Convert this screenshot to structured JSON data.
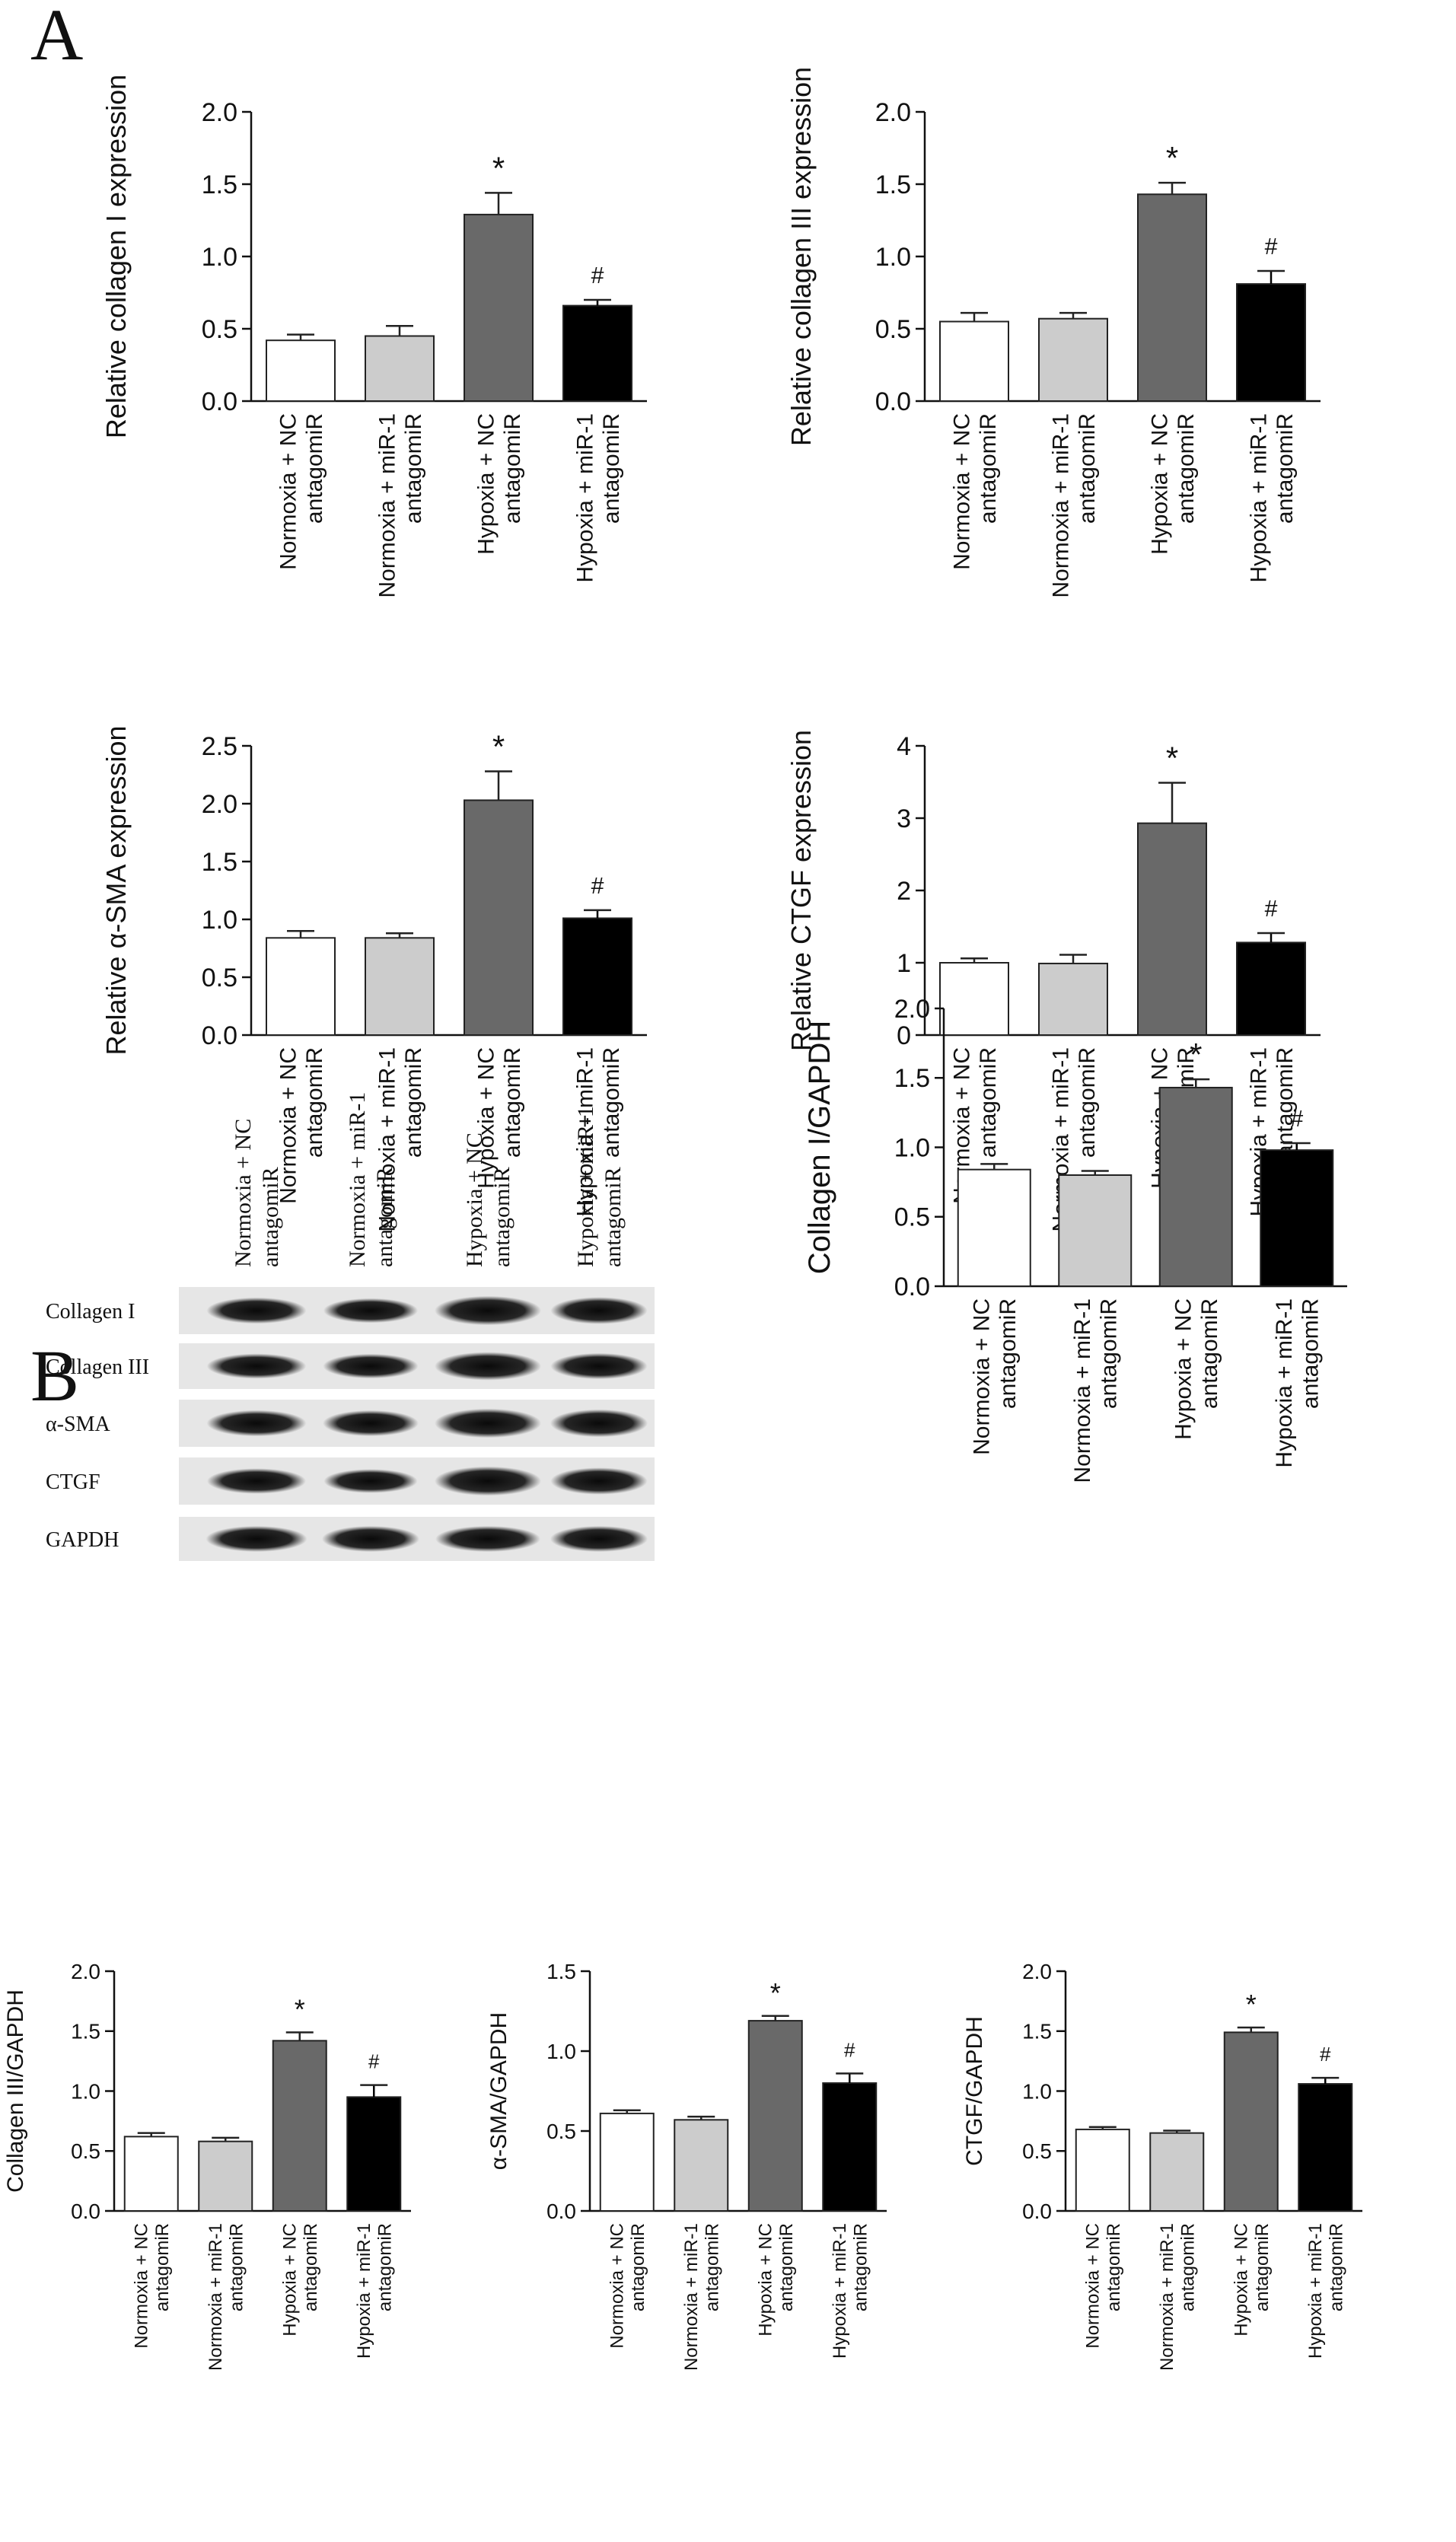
{
  "panel_labels": [
    "A",
    "B"
  ],
  "categories": [
    [
      "Normoxia + NC",
      "antagomiR"
    ],
    [
      "Normoxia + miR-1",
      "antagomiR"
    ],
    [
      "Hypoxia + NC",
      "antagomiR"
    ],
    [
      "Hypoxia + miR-1",
      "antagomiR"
    ]
  ],
  "colors": {
    "bars": [
      "#ffffff",
      "#cccccc",
      "#696969",
      "#000000"
    ],
    "axis": "#111111"
  },
  "blot": {
    "rows": [
      "Collagen I",
      "Collagen III",
      "α-SMA",
      "CTGF",
      "GAPDH"
    ],
    "columns": [
      [
        "Normoxia + NC",
        "antagomiR"
      ],
      [
        "Normoxia + miR-1",
        "antagomiR"
      ],
      [
        "Hypoxia + NC",
        "antagomiR"
      ],
      [
        "Hypoxia + miR-1",
        "antagomiR"
      ]
    ]
  },
  "chart_data": [
    {
      "id": "collagen1-expr",
      "type": "bar",
      "ylabel": "Relative collagen I expression",
      "ylim": [
        0,
        2.0
      ],
      "ticks": [
        0.0,
        0.5,
        1.0,
        1.5,
        2.0
      ],
      "tick_labels": [
        "0.0",
        "0.5",
        "1.0",
        "1.5",
        "2.0"
      ],
      "values": [
        0.42,
        0.45,
        1.29,
        0.66
      ],
      "errors": [
        0.04,
        0.07,
        0.15,
        0.04
      ],
      "marks": [
        "",
        "",
        "*",
        "#"
      ]
    },
    {
      "id": "collagen3-expr",
      "type": "bar",
      "ylabel": "Relative collagen III expression",
      "ylim": [
        0,
        2.0
      ],
      "ticks": [
        0.0,
        0.5,
        1.0,
        1.5,
        2.0
      ],
      "tick_labels": [
        "0.0",
        "0.5",
        "1.0",
        "1.5",
        "2.0"
      ],
      "values": [
        0.55,
        0.57,
        1.43,
        0.81
      ],
      "errors": [
        0.06,
        0.04,
        0.08,
        0.09
      ],
      "marks": [
        "",
        "",
        "*",
        "#"
      ]
    },
    {
      "id": "asma-expr",
      "type": "bar",
      "ylabel": "Relative α-SMA expression",
      "ylim": [
        0,
        2.5
      ],
      "ticks": [
        0.0,
        0.5,
        1.0,
        1.5,
        2.0,
        2.5
      ],
      "tick_labels": [
        "0.0",
        "0.5",
        "1.0",
        "1.5",
        "2.0",
        "2.5"
      ],
      "values": [
        0.84,
        0.84,
        2.03,
        1.01
      ],
      "errors": [
        0.06,
        0.04,
        0.25,
        0.07
      ],
      "marks": [
        "",
        "",
        "*",
        "#"
      ]
    },
    {
      "id": "ctgf-expr",
      "type": "bar",
      "ylabel": "Relative CTGF expression",
      "ylim": [
        0,
        4
      ],
      "ticks": [
        0,
        1,
        2,
        3,
        4
      ],
      "tick_labels": [
        "0",
        "1",
        "2",
        "3",
        "4"
      ],
      "values": [
        1.0,
        0.99,
        2.93,
        1.28
      ],
      "errors": [
        0.06,
        0.12,
        0.56,
        0.13
      ],
      "marks": [
        "",
        "",
        "*",
        "#"
      ]
    },
    {
      "id": "collagen1-gapdh",
      "type": "bar",
      "ylabel": "Collagen I/GAPDH",
      "ylim": [
        0,
        2.0
      ],
      "ticks": [
        0.0,
        0.5,
        1.0,
        1.5,
        2.0
      ],
      "tick_labels": [
        "0.0",
        "0.5",
        "1.0",
        "1.5",
        "2.0"
      ],
      "values": [
        0.84,
        0.8,
        1.43,
        0.98
      ],
      "errors": [
        0.04,
        0.03,
        0.06,
        0.05
      ],
      "marks": [
        "",
        "",
        "*",
        "#"
      ]
    },
    {
      "id": "collagen3-gapdh",
      "type": "bar",
      "ylabel": "Collagen III/GAPDH",
      "ylim": [
        0,
        2.0
      ],
      "ticks": [
        0.0,
        0.5,
        1.0,
        1.5,
        2.0
      ],
      "tick_labels": [
        "0.0",
        "0.5",
        "1.0",
        "1.5",
        "2.0"
      ],
      "values": [
        0.62,
        0.58,
        1.42,
        0.95
      ],
      "errors": [
        0.03,
        0.03,
        0.07,
        0.1
      ],
      "marks": [
        "",
        "",
        "*",
        "#"
      ]
    },
    {
      "id": "asma-gapdh",
      "type": "bar",
      "ylabel": "α-SMA/GAPDH",
      "ylim": [
        0,
        1.5
      ],
      "ticks": [
        0.0,
        0.5,
        1.0,
        1.5
      ],
      "tick_labels": [
        "0.0",
        "0.5",
        "1.0",
        "1.5"
      ],
      "values": [
        0.61,
        0.57,
        1.19,
        0.8
      ],
      "errors": [
        0.02,
        0.02,
        0.03,
        0.06
      ],
      "marks": [
        "",
        "",
        "*",
        "#"
      ]
    },
    {
      "id": "ctgf-gapdh",
      "type": "bar",
      "ylabel": "CTGF/GAPDH",
      "ylim": [
        0,
        2.0
      ],
      "ticks": [
        0.0,
        0.5,
        1.0,
        1.5,
        2.0
      ],
      "tick_labels": [
        "0.0",
        "0.5",
        "1.0",
        "1.5",
        "2.0"
      ],
      "values": [
        0.68,
        0.65,
        1.49,
        1.06
      ],
      "errors": [
        0.02,
        0.02,
        0.04,
        0.05
      ],
      "marks": [
        "",
        "",
        "*",
        "#"
      ]
    }
  ]
}
